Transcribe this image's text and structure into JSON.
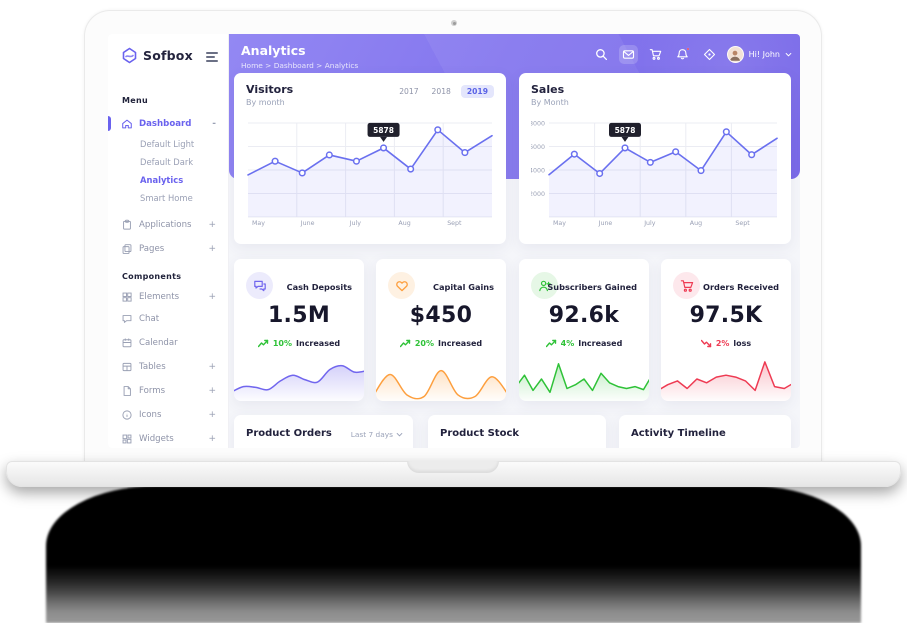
{
  "brand": {
    "name": "Sofbox",
    "color": "#6a62ee"
  },
  "header": {
    "title": "Analytics",
    "breadcrumb": "Home > Dashboard > Analytics",
    "user_greeting": "Hi! John",
    "icons": [
      "search-icon",
      "mail-icon",
      "cart-icon",
      "bell-icon",
      "compass-icon"
    ],
    "bell_badge": true
  },
  "sidebar": {
    "menu_header": "Menu",
    "components_header": "Components",
    "dashboard": {
      "label": "Dashboard",
      "expander": "-"
    },
    "dashboard_children": [
      {
        "label": "Default Light",
        "active": false
      },
      {
        "label": "Default Dark",
        "active": false
      },
      {
        "label": "Analytics",
        "active": true
      },
      {
        "label": "Smart Home",
        "active": false
      }
    ],
    "items": [
      {
        "label": "Applications",
        "expander": "+"
      },
      {
        "label": "Pages",
        "expander": "+"
      }
    ],
    "components": [
      {
        "label": "Elements",
        "expander": "+"
      },
      {
        "label": "Chat",
        "expander": ""
      },
      {
        "label": "Calendar",
        "expander": ""
      },
      {
        "label": "Tables",
        "expander": "+"
      },
      {
        "label": "Forms",
        "expander": "+"
      },
      {
        "label": "Icons",
        "expander": "+"
      },
      {
        "label": "Widgets",
        "expander": "+"
      }
    ]
  },
  "chart_data": [
    {
      "type": "line",
      "title": "Visitors",
      "subtitle": "By month",
      "tabs": [
        "2017",
        "2018",
        "2019"
      ],
      "active_tab": "2019",
      "categories": [
        "May",
        "June",
        "July",
        "Aug",
        "Sept"
      ],
      "values": [
        3580,
        4750,
        3750,
        5280,
        4750,
        5878,
        4080,
        7420,
        5480,
        6920
      ],
      "tooltip": {
        "index": 5,
        "label": "5878"
      },
      "ylim": [
        0,
        8000
      ],
      "yticks": [],
      "grid": true,
      "legend": "none",
      "line_color": "#6a70ef",
      "fill_color": "rgba(106,112,239,0.09)"
    },
    {
      "type": "line",
      "title": "Sales",
      "subtitle": "By Month",
      "categories": [
        "May",
        "June",
        "July",
        "Aug",
        "Sept"
      ],
      "values": [
        3600,
        5350,
        3700,
        5878,
        4650,
        5550,
        3950,
        7250,
        5300,
        6700
      ],
      "tooltip": {
        "index": 3,
        "label": "5878"
      },
      "ylim": [
        0,
        8000
      ],
      "yticks": [
        2000,
        4000,
        6000,
        8000
      ],
      "grid": true,
      "legend": "none",
      "line_color": "#6a70ef",
      "fill_color": "rgba(106,112,239,0.09)"
    }
  ],
  "stats": {
    "cards": [
      {
        "label": "Cash Deposits",
        "value": "1.5M",
        "change_pct": "10%",
        "change_text": "Increased",
        "trend": "up",
        "trend_color": "#2fc238",
        "spark_color": "#7166ee",
        "icon": "chat-icon",
        "smooth": true,
        "spark": [
          1.5,
          3,
          2.8,
          2.2,
          4.5,
          6,
          4.8,
          4.2,
          7.5,
          8.5,
          6.8,
          7.2
        ]
      },
      {
        "label": "Capital Gains",
        "value": "$450",
        "change_pct": "20%",
        "change_text": "Increased",
        "trend": "up",
        "trend_color": "#2fc238",
        "spark_color": "#fd9f3e",
        "icon": "heart-icon",
        "smooth": true,
        "spark": [
          0.5,
          6.2,
          0.8,
          0.4,
          7.2,
          0.8,
          0.4,
          5.6,
          0.6
        ]
      },
      {
        "label": "Subscribers Gained",
        "value": "92.6k",
        "change_pct": "4%",
        "change_text": "Increased",
        "trend": "up",
        "trend_color": "#2fc238",
        "spark_color": "#2fc238",
        "icon": "user-plus-icon",
        "smooth": false,
        "spark": [
          3,
          6,
          2,
          5,
          1.5,
          9,
          2.5,
          3.5,
          5,
          2,
          6.5,
          4,
          3,
          2.5,
          3,
          2.2,
          6
        ]
      },
      {
        "label": "Orders Received",
        "value": "97.5K",
        "change_pct": "2%",
        "change_text": "loss",
        "trend": "down",
        "trend_color": "#ee3b53",
        "spark_color": "#ee3b53",
        "icon": "cart-icon",
        "smooth": false,
        "spark": [
          2,
          3.5,
          4.5,
          2.5,
          5,
          4,
          5.5,
          6,
          5.5,
          4.5,
          2,
          9.5,
          3,
          2.5,
          4
        ]
      }
    ]
  },
  "bottom": {
    "cards": [
      {
        "title": "Product Orders",
        "filter": "Last 7 days"
      },
      {
        "title": "Product Stock",
        "filter": ""
      },
      {
        "title": "Activity Timeline",
        "filter": ""
      }
    ]
  },
  "colors": {
    "banner_purple": "#8476ee",
    "accent_indigo": "#6a62ee",
    "green": "#2fc238",
    "red": "#ee3b53",
    "orange": "#fd9f3e"
  }
}
